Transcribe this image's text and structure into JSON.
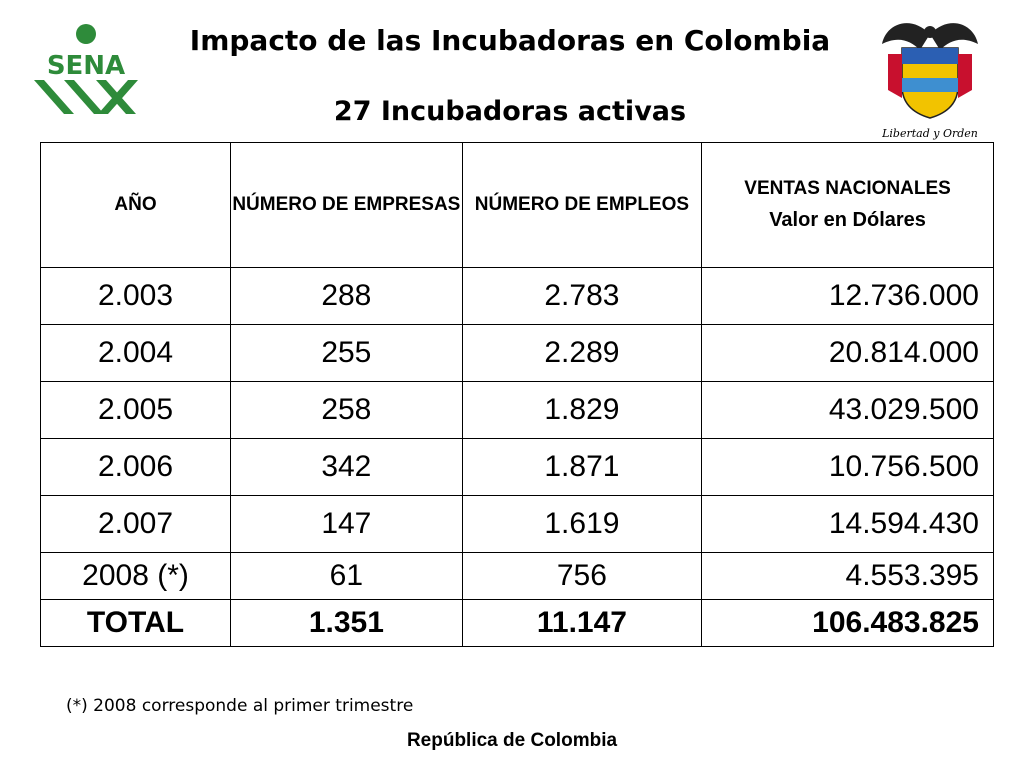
{
  "logos": {
    "left": "SENA",
    "right_caption": "Libertad y Orden"
  },
  "title": "Impacto de las Incubadoras en Colombia",
  "subtitle": "27 Incubadoras activas",
  "table": {
    "headers": [
      "AÑO",
      "NÚMERO DE EMPRESAS",
      "NÚMERO DE EMPLEOS",
      "VENTAS NACIONALES"
    ],
    "header_sub": "Valor en Dólares",
    "rows": [
      [
        "2.003",
        "288",
        "2.783",
        "12.736.000"
      ],
      [
        "2.004",
        "255",
        "2.289",
        "20.814.000"
      ],
      [
        "2.005",
        "258",
        "1.829",
        "43.029.500"
      ],
      [
        "2.006",
        "342",
        "1.871",
        "10.756.500"
      ],
      [
        "2.007",
        "147",
        "1.619",
        "14.594.430"
      ],
      [
        "2008 (*)",
        "61",
        "756",
        "4.553.395"
      ],
      [
        "TOTAL",
        "1.351",
        "11.147",
        "106.483.825"
      ]
    ]
  },
  "footnote": "(*) 2008 corresponde al primer trimestre",
  "footer": "República de Colombia"
}
